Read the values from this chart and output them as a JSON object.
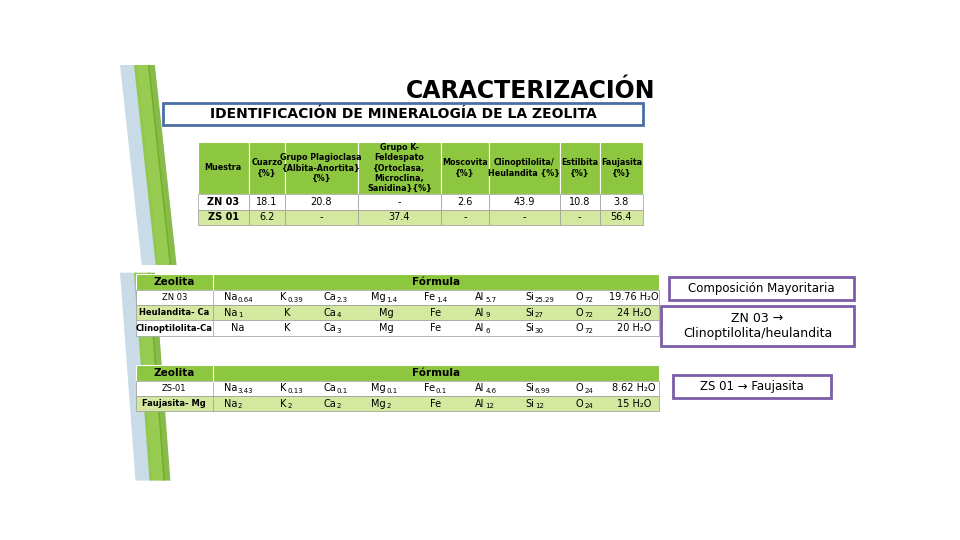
{
  "title": "CARACTERIZACIÓN",
  "subtitle": "IDENTIFICACIÓN DE MINERALOGÍA DE LA ZEOLITA",
  "bg_color": "#ffffff",
  "green_header": "#8dc63f",
  "green_row_alt": "#d4e8a0",
  "green_row_white": "#ffffff",
  "purple_border": "#7b5ea7",
  "subtitle_border": "#4a6fa5",
  "table1_headers": [
    "Muestra",
    "Cuarzo\n{%}",
    "Grupo Plagioclasa\n{Albita-Anortita}\n{%}",
    "Grupo K-\nFeldespato\n{Ortoclasa,\nMicroclina,\nSanidina}{%}",
    "Moscovita\n{%}",
    "Clinoptilolita/\nHeulandita {%}",
    "Estilbita\n{%}",
    "Faujasita\n{%}"
  ],
  "table1_rows": [
    [
      "ZN 03",
      "18.1",
      "20.8",
      "-",
      "2.6",
      "43.9",
      "10.8",
      "3.8"
    ],
    [
      "ZS 01",
      "6.2",
      "-",
      "37.4",
      "-",
      "-",
      "-",
      "56.4"
    ]
  ],
  "col_widths_rel": [
    52,
    36,
    74,
    84,
    48,
    72,
    40,
    44
  ],
  "box1_text": "Composición Mayoritaria",
  "box2_text": "ZN 03 →\nClinoptilolita/heulandita",
  "box3_text": "ZS 01 → Faujasita",
  "stripe_blue": "#b8cfe0",
  "stripe_green_light": "#8dc63f",
  "stripe_green_dark": "#6aaa1e"
}
